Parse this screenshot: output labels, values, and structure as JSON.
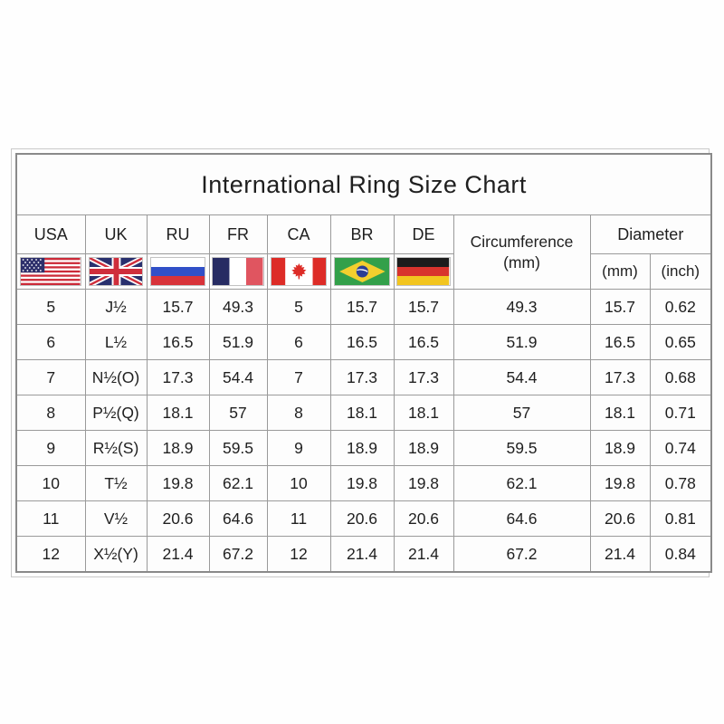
{
  "chart_data": {
    "type": "table",
    "title": "International Ring Size Chart",
    "columns": [
      "USA",
      "UK",
      "RU",
      "FR",
      "CA",
      "BR",
      "DE",
      "Circumference (mm)",
      "Diameter (mm)",
      "Diameter (inch)"
    ],
    "rows": [
      [
        "5",
        "J½",
        "15.7",
        "49.3",
        "5",
        "15.7",
        "15.7",
        "49.3",
        "15.7",
        "0.62"
      ],
      [
        "6",
        "L½",
        "16.5",
        "51.9",
        "6",
        "16.5",
        "16.5",
        "51.9",
        "16.5",
        "0.65"
      ],
      [
        "7",
        "N½(O)",
        "17.3",
        "54.4",
        "7",
        "17.3",
        "17.3",
        "54.4",
        "17.3",
        "0.68"
      ],
      [
        "8",
        "P½(Q)",
        "18.1",
        "57",
        "8",
        "18.1",
        "18.1",
        "57",
        "18.1",
        "0.71"
      ],
      [
        "9",
        "R½(S)",
        "18.9",
        "59.5",
        "9",
        "18.9",
        "18.9",
        "59.5",
        "18.9",
        "0.74"
      ],
      [
        "10",
        "T½",
        "19.8",
        "62.1",
        "10",
        "19.8",
        "19.8",
        "62.1",
        "19.8",
        "0.78"
      ],
      [
        "11",
        "V½",
        "20.6",
        "64.6",
        "11",
        "20.6",
        "20.6",
        "64.6",
        "20.6",
        "0.81"
      ],
      [
        "12",
        "X½(Y)",
        "21.4",
        "67.2",
        "12",
        "21.4",
        "21.4",
        "67.2",
        "21.4",
        "0.84"
      ]
    ]
  },
  "header": {
    "country_codes": [
      "USA",
      "UK",
      "RU",
      "FR",
      "CA",
      "BR",
      "DE"
    ],
    "flag_icons": [
      "usa-flag-icon",
      "uk-flag-icon",
      "russia-flag-icon",
      "france-flag-icon",
      "canada-flag-icon",
      "brazil-flag-icon",
      "germany-flag-icon"
    ],
    "circumference_line1": "Circumference",
    "circumference_line2": "(mm)",
    "diameter": "Diameter",
    "diameter_mm": "(mm)",
    "diameter_inch": "(inch)"
  },
  "colors": {
    "grid_line": "#9a9a9a",
    "outer_border": "#c9c9c9",
    "inner_border": "#8a8a8a",
    "text": "#1f1f1f"
  }
}
